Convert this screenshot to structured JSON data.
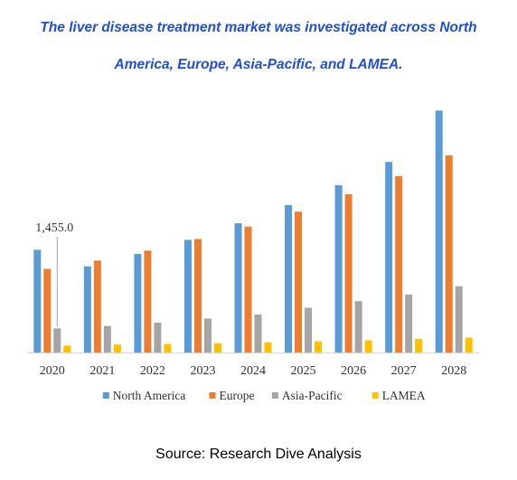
{
  "title_lines": [
    "The liver disease treatment market was investigated across North",
    "America, Europe, Asia-Pacific, and LAMEA."
  ],
  "source": "Source: Research Dive Analysis",
  "colors": {
    "north_america": "#5b9bd5",
    "europe": "#ed7d31",
    "asia_pacific": "#a5a5a5",
    "lamea": "#ffc000",
    "title": "#1f4fd8"
  },
  "chart_data": {
    "type": "bar",
    "categories": [
      "2020",
      "2021",
      "2022",
      "2023",
      "2024",
      "2025",
      "2026",
      "2027",
      "2028"
    ],
    "series": [
      {
        "name": "North America",
        "values": [
          6200,
          5200,
          5950,
          6800,
          7800,
          8900,
          10100,
          11500,
          14600
        ]
      },
      {
        "name": "Europe",
        "values": [
          5050,
          5550,
          6150,
          6850,
          7600,
          8500,
          9550,
          10650,
          11900
        ]
      },
      {
        "name": "Asia-Pacific",
        "values": [
          1455.0,
          1600,
          1800,
          2050,
          2300,
          2700,
          3100,
          3500,
          4000
        ]
      },
      {
        "name": "LAMEA",
        "values": [
          420,
          480,
          520,
          560,
          620,
          680,
          740,
          820,
          900
        ]
      }
    ],
    "ylim": [
      0,
      15000
    ],
    "grid": false,
    "legend": "bottom",
    "annotations": [
      {
        "text": "1,455.0",
        "category": "2020",
        "series": "Asia-Pacific"
      }
    ]
  }
}
